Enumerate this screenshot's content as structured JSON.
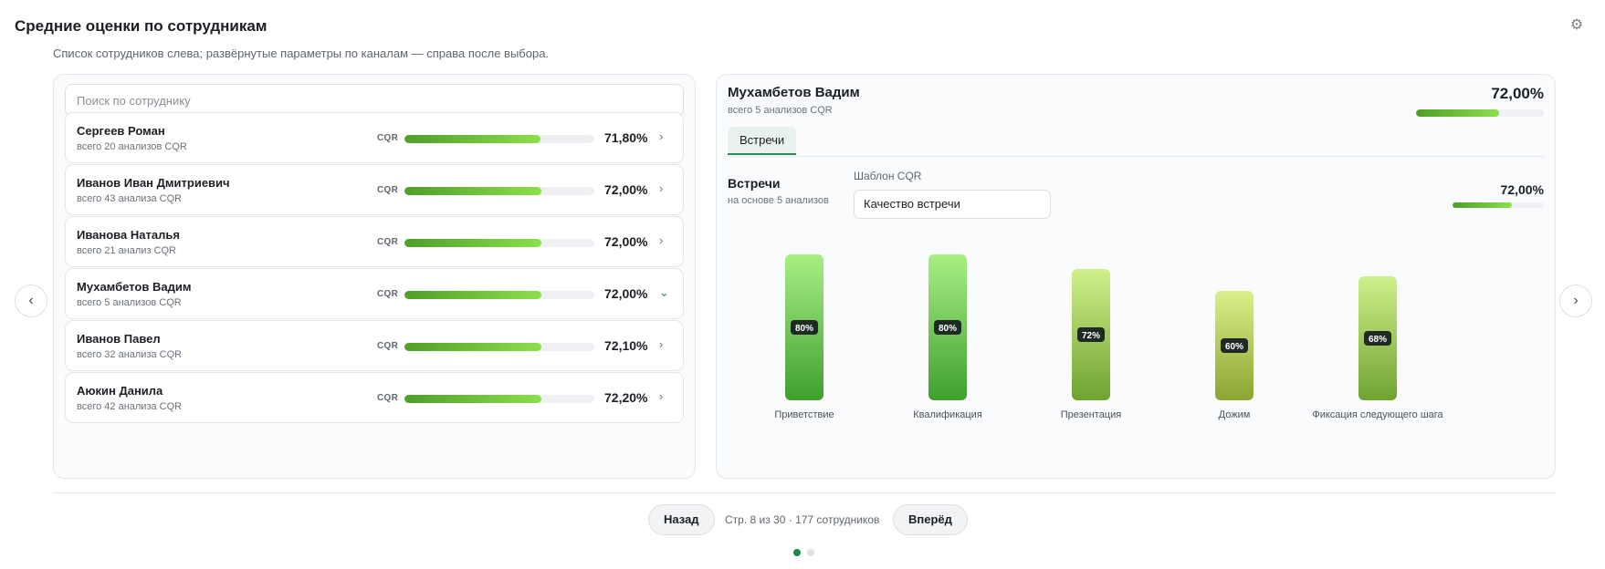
{
  "header": {
    "title": "Средние оценки по сотрудникам",
    "subtitle": "Список сотрудников слева; развёрнутые параметры по каналам — справа после выбора.",
    "settings_icon": "gear-icon"
  },
  "search": {
    "placeholder": "Поиск по сотруднику",
    "value": ""
  },
  "employees": [
    {
      "name": "Сергеев Роман",
      "sub": "всего 20 анализов CQR",
      "metric": "CQR",
      "value": "71,80%",
      "score": 71.8,
      "expanded": false
    },
    {
      "name": "Иванов Иван Дмитриевич",
      "sub": "всего 43 анализа CQR",
      "metric": "CQR",
      "value": "72,00%",
      "score": 72.0,
      "expanded": false
    },
    {
      "name": "Иванова Наталья",
      "sub": "всего 21 анализ CQR",
      "metric": "CQR",
      "value": "72,00%",
      "score": 72.0,
      "expanded": false
    },
    {
      "name": "Мухамбетов Вадим",
      "sub": "всего 5 анализов CQR",
      "metric": "CQR",
      "value": "72,00%",
      "score": 72.0,
      "expanded": true
    },
    {
      "name": "Иванов Павел",
      "sub": "всего 32 анализа CQR",
      "metric": "CQR",
      "value": "72,10%",
      "score": 72.1,
      "expanded": false
    },
    {
      "name": "Аюкин Данила",
      "sub": "всего 42 анализа CQR",
      "metric": "CQR",
      "value": "72,20%",
      "score": 72.2,
      "expanded": false
    }
  ],
  "detail": {
    "name": "Мухамбетов Вадим",
    "sub": "всего 5 анализов CQR",
    "value": "72,00%",
    "score": 72.0,
    "tabs": [
      {
        "label": "Встречи",
        "active": true
      }
    ],
    "section": {
      "title": "Встречи",
      "sub": "на основе 5 анализов",
      "template_label": "Шаблон CQR",
      "template_value": "Качество встречи",
      "value": "72,00%",
      "score": 72.0
    }
  },
  "chart_data": {
    "type": "bar",
    "categories": [
      "Приветствие",
      "Квалификация",
      "Презентация",
      "Дожим",
      "Фиксация следующего шага"
    ],
    "values": [
      80,
      80,
      72,
      60,
      68
    ],
    "value_labels": [
      "80%",
      "80%",
      "72%",
      "60%",
      "68%"
    ],
    "ylim": [
      0,
      100
    ],
    "grid": false,
    "colors": {
      "high_top": "#a8ef84",
      "high_bottom": "#3fa02e",
      "mid_top": "#cff08a",
      "mid_bottom": "#6fa331",
      "low_top": "#dcef8a",
      "low_bottom": "#8aa532"
    }
  },
  "pagination": {
    "prev_label": "Назад",
    "next_label": "Вперёд",
    "info": "Стр. 8 из 30 · 177 сотрудников"
  },
  "colors": {
    "accent": "#1a8a4a",
    "bar_start": "#4f9e2a",
    "bar_end": "#8be04a"
  }
}
